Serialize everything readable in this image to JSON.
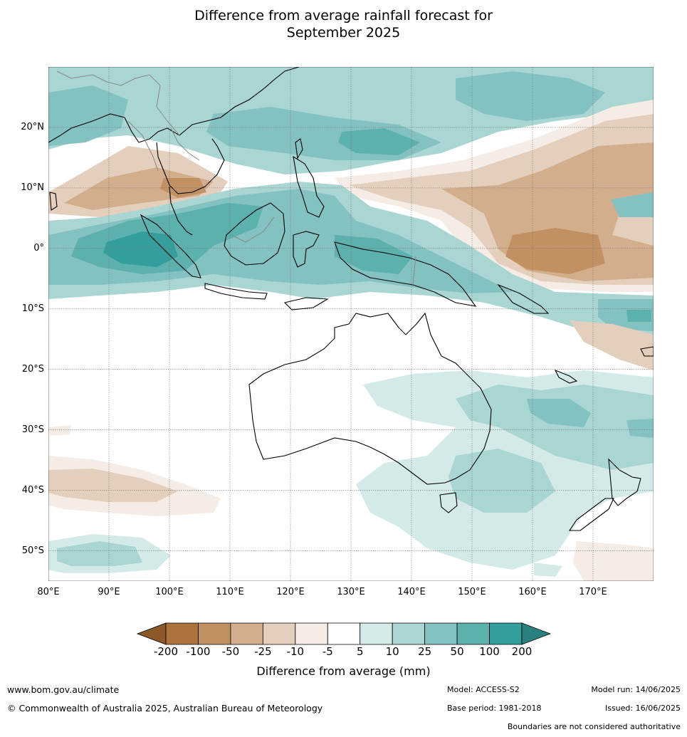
{
  "title_line1": "Difference from average rainfall forecast for",
  "title_line2": "September 2025",
  "map": {
    "lon_min": 80,
    "lon_max": 180,
    "lat_min": -55,
    "lat_max": 30,
    "lat_ticks": [
      {
        "value": 20,
        "label": "20°N"
      },
      {
        "value": 10,
        "label": "10°N"
      },
      {
        "value": 0,
        "label": "0°"
      },
      {
        "value": -10,
        "label": "10°S"
      },
      {
        "value": -20,
        "label": "20°S"
      },
      {
        "value": -30,
        "label": "30°S"
      },
      {
        "value": -40,
        "label": "40°S"
      },
      {
        "value": -50,
        "label": "50°S"
      }
    ],
    "lon_ticks": [
      {
        "value": 80,
        "label": "80°E"
      },
      {
        "value": 90,
        "label": "90°E"
      },
      {
        "value": 100,
        "label": "100°E"
      },
      {
        "value": 110,
        "label": "110°E"
      },
      {
        "value": 120,
        "label": "120°E"
      },
      {
        "value": 130,
        "label": "130°E"
      },
      {
        "value": 140,
        "label": "140°E"
      },
      {
        "value": 150,
        "label": "150°E"
      },
      {
        "value": 160,
        "label": "160°E"
      },
      {
        "value": 170,
        "label": "170°E"
      }
    ]
  },
  "colorbar": {
    "title": "Difference from average (mm)",
    "tick_labels": [
      "-200",
      "-100",
      "-50",
      "-25",
      "-10",
      "-5",
      "5",
      "10",
      "25",
      "50",
      "100",
      "200"
    ],
    "colors": {
      "below_min": "#8c5a2a",
      "bins": [
        "#ad733c",
        "#c19063",
        "#d3ae8c",
        "#e4cfbd",
        "#f5ece6",
        "#ffffff",
        "#d4eae8",
        "#a9d5d3",
        "#84c2c1",
        "#5cb0ae",
        "#339e9c"
      ],
      "above_max": "#2a807e"
    }
  },
  "footer": {
    "website": "www.bom.gov.au/climate",
    "copyright": "© Commonwealth of Australia 2025, Australian Bureau of Meteorology",
    "model": "Model: ACCESS-S2",
    "base_period": "Base period: 1981-2018",
    "model_run": "Model run: 14/06/2025",
    "issued": "Issued: 16/06/2025",
    "disclaimer": "Boundaries are not considered authoritative"
  }
}
